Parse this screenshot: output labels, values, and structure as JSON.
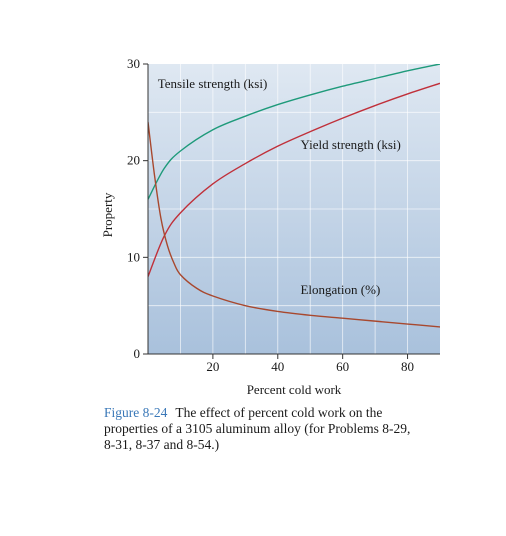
{
  "chart_data": {
    "type": "line",
    "xlabel": "Percent cold work",
    "ylabel": "Property",
    "xlim": [
      0,
      90
    ],
    "ylim": [
      0,
      30
    ],
    "xticks": [
      20,
      40,
      60,
      80
    ],
    "yticks": [
      0,
      10,
      20,
      30
    ],
    "grid": true,
    "colors": {
      "background_top": "#dfe8f2",
      "background_bottom": "#a9c1dc",
      "grid": "#ffffff"
    },
    "series": [
      {
        "name": "Tensile strength (ksi)",
        "color": "#1e9a7a",
        "x": [
          0,
          5,
          10,
          20,
          30,
          40,
          50,
          60,
          70,
          80,
          90
        ],
        "y": [
          16,
          19.2,
          21.0,
          23.2,
          24.6,
          25.8,
          26.8,
          27.7,
          28.5,
          29.3,
          30.0
        ]
      },
      {
        "name": "Yield strength (ksi)",
        "color": "#c0303a",
        "x": [
          0,
          5,
          10,
          20,
          30,
          40,
          50,
          60,
          70,
          80,
          90
        ],
        "y": [
          8.0,
          12.2,
          14.6,
          17.6,
          19.7,
          21.5,
          23.0,
          24.4,
          25.7,
          26.9,
          28.0
        ]
      },
      {
        "name": "Elongation (%)",
        "color": "#a8482e",
        "x": [
          0,
          2,
          4,
          6,
          8,
          10,
          15,
          20,
          30,
          40,
          50,
          60,
          70,
          80,
          90
        ],
        "y": [
          24.0,
          18.5,
          14.0,
          11.2,
          9.4,
          8.2,
          6.8,
          6.0,
          5.0,
          4.4,
          4.0,
          3.7,
          3.4,
          3.1,
          2.8
        ]
      }
    ],
    "annotations": [
      {
        "text": "Tensile strength (ksi)",
        "x": 3,
        "y": 27.5
      },
      {
        "text": "Yield strength (ksi)",
        "x": 47,
        "y": 21.2
      },
      {
        "text": "Elongation (%)",
        "x": 47,
        "y": 6.2
      }
    ]
  },
  "caption": {
    "figure_label": "Figure 8-24",
    "text": "The effect of percent cold work on the properties of a 3105 aluminum alloy (for Problems 8-29, 8-31, 8-37 and 8-54.)"
  }
}
